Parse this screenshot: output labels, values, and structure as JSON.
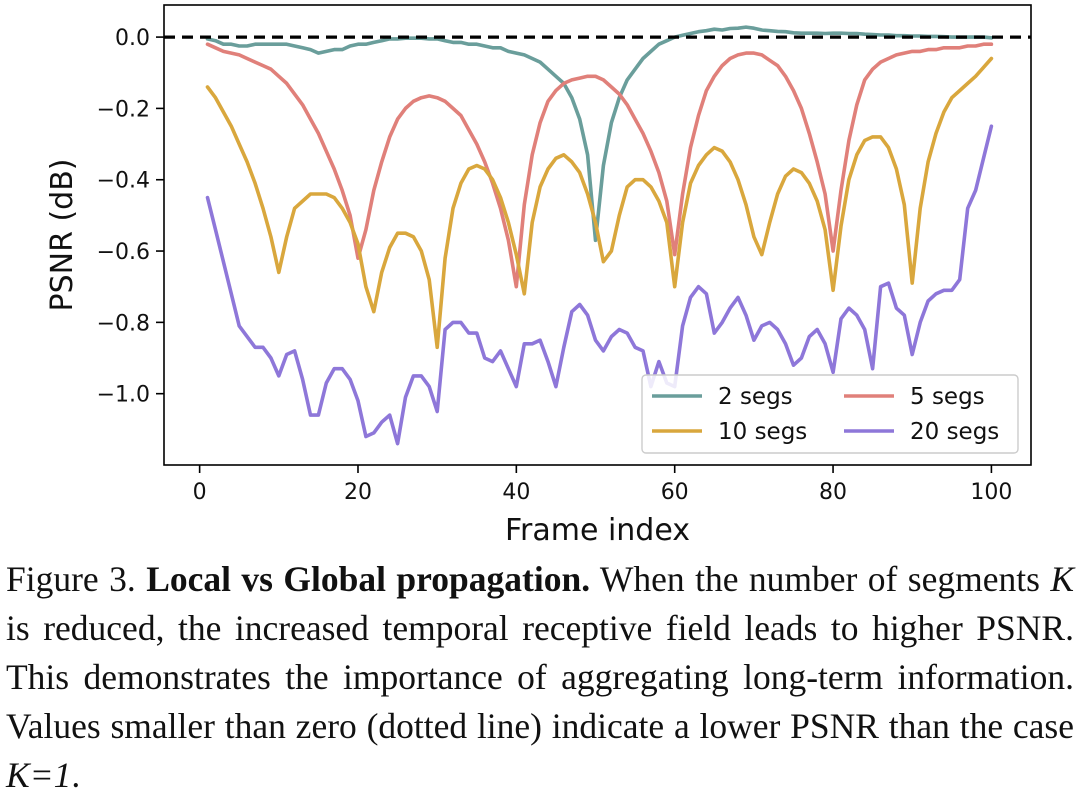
{
  "chart_data": {
    "type": "line",
    "xlabel": "Frame index",
    "ylabel": "PSNR (dB)",
    "xlim": [
      -4.5,
      105
    ],
    "ylim": [
      -1.2,
      0.09
    ],
    "xticks": [
      0,
      20,
      40,
      60,
      80,
      100
    ],
    "yticks": [
      0.0,
      -0.2,
      -0.4,
      -0.6,
      -0.8,
      -1.0
    ],
    "ytick_labels": [
      "0.0",
      "−0.2",
      "−0.4",
      "−0.6",
      "−0.8",
      "−1.0"
    ],
    "reference_line": {
      "y": 0.0,
      "style": "dashed",
      "color": "#000000"
    },
    "legend_position": "lower-right",
    "series": [
      {
        "name": "2 segs",
        "color": "#6a9e9b",
        "x": [
          1,
          2,
          3,
          4,
          5,
          6,
          7,
          8,
          9,
          10,
          11,
          12,
          13,
          14,
          15,
          16,
          17,
          18,
          19,
          20,
          21,
          22,
          23,
          24,
          25,
          26,
          27,
          28,
          29,
          30,
          31,
          32,
          33,
          34,
          35,
          36,
          37,
          38,
          39,
          40,
          41,
          42,
          43,
          44,
          45,
          46,
          47,
          48,
          49,
          50,
          51,
          52,
          53,
          54,
          55,
          56,
          57,
          58,
          59,
          60,
          61,
          62,
          63,
          64,
          65,
          66,
          67,
          68,
          69,
          70,
          71,
          72,
          73,
          74,
          75,
          76,
          77,
          78,
          79,
          80,
          81,
          82,
          83,
          84,
          85,
          86,
          87,
          88,
          89,
          90,
          91,
          92,
          93,
          94,
          95,
          96,
          97,
          98,
          99,
          100
        ],
        "values": [
          -0.005,
          -0.01,
          -0.02,
          -0.02,
          -0.025,
          -0.025,
          -0.02,
          -0.02,
          -0.02,
          -0.02,
          -0.02,
          -0.025,
          -0.03,
          -0.035,
          -0.045,
          -0.04,
          -0.035,
          -0.035,
          -0.025,
          -0.02,
          -0.02,
          -0.015,
          -0.01,
          -0.005,
          -0.005,
          -0.003,
          -0.003,
          -0.003,
          -0.005,
          -0.005,
          -0.01,
          -0.015,
          -0.015,
          -0.02,
          -0.02,
          -0.025,
          -0.03,
          -0.03,
          -0.04,
          -0.045,
          -0.05,
          -0.06,
          -0.07,
          -0.09,
          -0.11,
          -0.13,
          -0.17,
          -0.23,
          -0.33,
          -0.57,
          -0.36,
          -0.24,
          -0.17,
          -0.12,
          -0.09,
          -0.06,
          -0.04,
          -0.02,
          -0.01,
          0.0,
          0.005,
          0.01,
          0.015,
          0.018,
          0.022,
          0.02,
          0.024,
          0.025,
          0.028,
          0.025,
          0.02,
          0.018,
          0.016,
          0.015,
          0.012,
          0.011,
          0.011,
          0.011,
          0.01,
          0.011,
          0.011,
          0.01,
          0.01,
          0.008,
          0.007,
          0.006,
          0.006,
          0.004,
          0.004,
          0.003,
          0.003,
          0.002,
          0.002,
          0.001,
          0.0,
          0.0,
          0.0,
          0.0,
          0.0,
          -0.002
        ]
      },
      {
        "name": "5 segs",
        "color": "#e0807a",
        "x": [
          1,
          2,
          3,
          4,
          5,
          6,
          7,
          8,
          9,
          10,
          11,
          12,
          13,
          14,
          15,
          16,
          17,
          18,
          19,
          20,
          21,
          22,
          23,
          24,
          25,
          26,
          27,
          28,
          29,
          30,
          31,
          32,
          33,
          34,
          35,
          36,
          37,
          38,
          39,
          40,
          41,
          42,
          43,
          44,
          45,
          46,
          47,
          48,
          49,
          50,
          51,
          52,
          53,
          54,
          55,
          56,
          57,
          58,
          59,
          60,
          61,
          62,
          63,
          64,
          65,
          66,
          67,
          68,
          69,
          70,
          71,
          72,
          73,
          74,
          75,
          76,
          77,
          78,
          79,
          80,
          81,
          82,
          83,
          84,
          85,
          86,
          87,
          88,
          89,
          90,
          91,
          92,
          93,
          94,
          95,
          96,
          97,
          98,
          99,
          100
        ],
        "values": [
          -0.02,
          -0.03,
          -0.04,
          -0.045,
          -0.05,
          -0.06,
          -0.07,
          -0.08,
          -0.09,
          -0.11,
          -0.13,
          -0.16,
          -0.19,
          -0.23,
          -0.27,
          -0.32,
          -0.37,
          -0.43,
          -0.5,
          -0.62,
          -0.54,
          -0.43,
          -0.35,
          -0.28,
          -0.23,
          -0.2,
          -0.18,
          -0.17,
          -0.165,
          -0.17,
          -0.18,
          -0.2,
          -0.22,
          -0.26,
          -0.3,
          -0.35,
          -0.41,
          -0.48,
          -0.57,
          -0.7,
          -0.47,
          -0.33,
          -0.24,
          -0.18,
          -0.15,
          -0.13,
          -0.12,
          -0.115,
          -0.11,
          -0.11,
          -0.12,
          -0.14,
          -0.16,
          -0.19,
          -0.23,
          -0.27,
          -0.32,
          -0.38,
          -0.46,
          -0.61,
          -0.44,
          -0.31,
          -0.22,
          -0.15,
          -0.11,
          -0.08,
          -0.06,
          -0.05,
          -0.045,
          -0.045,
          -0.05,
          -0.065,
          -0.08,
          -0.11,
          -0.15,
          -0.2,
          -0.27,
          -0.35,
          -0.44,
          -0.6,
          -0.43,
          -0.29,
          -0.19,
          -0.12,
          -0.09,
          -0.07,
          -0.06,
          -0.05,
          -0.045,
          -0.04,
          -0.04,
          -0.035,
          -0.035,
          -0.03,
          -0.03,
          -0.03,
          -0.025,
          -0.025,
          -0.02,
          -0.02
        ]
      },
      {
        "name": "10 segs",
        "color": "#d9a73d",
        "x": [
          1,
          2,
          3,
          4,
          5,
          6,
          7,
          8,
          9,
          10,
          11,
          12,
          13,
          14,
          15,
          16,
          17,
          18,
          19,
          20,
          21,
          22,
          23,
          24,
          25,
          26,
          27,
          28,
          29,
          30,
          31,
          32,
          33,
          34,
          35,
          36,
          37,
          38,
          39,
          40,
          41,
          42,
          43,
          44,
          45,
          46,
          47,
          48,
          49,
          50,
          51,
          52,
          53,
          54,
          55,
          56,
          57,
          58,
          59,
          60,
          61,
          62,
          63,
          64,
          65,
          66,
          67,
          68,
          69,
          70,
          71,
          72,
          73,
          74,
          75,
          76,
          77,
          78,
          79,
          80,
          81,
          82,
          83,
          84,
          85,
          86,
          87,
          88,
          89,
          90,
          91,
          92,
          93,
          94,
          95,
          96,
          97,
          98,
          99,
          100
        ],
        "values": [
          -0.14,
          -0.17,
          -0.21,
          -0.25,
          -0.3,
          -0.35,
          -0.41,
          -0.48,
          -0.56,
          -0.66,
          -0.56,
          -0.48,
          -0.46,
          -0.44,
          -0.44,
          -0.44,
          -0.45,
          -0.48,
          -0.52,
          -0.58,
          -0.7,
          -0.77,
          -0.66,
          -0.59,
          -0.55,
          -0.55,
          -0.56,
          -0.6,
          -0.68,
          -0.87,
          -0.62,
          -0.48,
          -0.41,
          -0.37,
          -0.36,
          -0.37,
          -0.4,
          -0.45,
          -0.52,
          -0.61,
          -0.72,
          -0.52,
          -0.42,
          -0.37,
          -0.34,
          -0.33,
          -0.35,
          -0.38,
          -0.44,
          -0.52,
          -0.63,
          -0.6,
          -0.5,
          -0.42,
          -0.4,
          -0.4,
          -0.42,
          -0.46,
          -0.52,
          -0.7,
          -0.52,
          -0.41,
          -0.36,
          -0.33,
          -0.31,
          -0.32,
          -0.35,
          -0.4,
          -0.47,
          -0.56,
          -0.61,
          -0.52,
          -0.44,
          -0.39,
          -0.37,
          -0.38,
          -0.41,
          -0.46,
          -0.54,
          -0.71,
          -0.53,
          -0.4,
          -0.33,
          -0.29,
          -0.28,
          -0.28,
          -0.31,
          -0.37,
          -0.47,
          -0.69,
          -0.48,
          -0.35,
          -0.27,
          -0.21,
          -0.17,
          -0.15,
          -0.13,
          -0.11,
          -0.085,
          -0.06
        ]
      },
      {
        "name": "20 segs",
        "color": "#8e77d9",
        "x": [
          1,
          2,
          3,
          4,
          5,
          6,
          7,
          8,
          9,
          10,
          11,
          12,
          13,
          14,
          15,
          16,
          17,
          18,
          19,
          20,
          21,
          22,
          23,
          24,
          25,
          26,
          27,
          28,
          29,
          30,
          31,
          32,
          33,
          34,
          35,
          36,
          37,
          38,
          39,
          40,
          41,
          42,
          43,
          44,
          45,
          46,
          47,
          48,
          49,
          50,
          51,
          52,
          53,
          54,
          55,
          56,
          57,
          58,
          59,
          60,
          61,
          62,
          63,
          64,
          65,
          66,
          67,
          68,
          69,
          70,
          71,
          72,
          73,
          74,
          75,
          76,
          77,
          78,
          79,
          80,
          81,
          82,
          83,
          84,
          85,
          86,
          87,
          88,
          89,
          90,
          91,
          92,
          93,
          94,
          95,
          96,
          97,
          98,
          99,
          100
        ],
        "values": [
          -0.45,
          -0.54,
          -0.63,
          -0.72,
          -0.81,
          -0.84,
          -0.87,
          -0.87,
          -0.9,
          -0.95,
          -0.89,
          -0.88,
          -0.96,
          -1.06,
          -1.06,
          -0.97,
          -0.93,
          -0.93,
          -0.96,
          -1.02,
          -1.12,
          -1.11,
          -1.08,
          -1.06,
          -1.14,
          -1.01,
          -0.95,
          -0.95,
          -0.98,
          -1.05,
          -0.82,
          -0.8,
          -0.8,
          -0.83,
          -0.83,
          -0.9,
          -0.91,
          -0.88,
          -0.93,
          -0.98,
          -0.86,
          -0.86,
          -0.85,
          -0.91,
          -0.98,
          -0.87,
          -0.77,
          -0.75,
          -0.78,
          -0.85,
          -0.88,
          -0.84,
          -0.82,
          -0.83,
          -0.87,
          -0.88,
          -0.98,
          -0.91,
          -0.97,
          -0.98,
          -0.81,
          -0.73,
          -0.7,
          -0.72,
          -0.83,
          -0.8,
          -0.76,
          -0.73,
          -0.78,
          -0.85,
          -0.81,
          -0.8,
          -0.82,
          -0.86,
          -0.92,
          -0.9,
          -0.84,
          -0.82,
          -0.86,
          -0.94,
          -0.79,
          -0.76,
          -0.78,
          -0.82,
          -0.93,
          -0.7,
          -0.69,
          -0.76,
          -0.78,
          -0.89,
          -0.8,
          -0.74,
          -0.72,
          -0.71,
          -0.71,
          -0.68,
          -0.48,
          -0.43,
          -0.34,
          -0.25
        ]
      }
    ]
  },
  "caption": {
    "label": "Figure 3.",
    "title": "Local vs Global propagation.",
    "text_1": "When the number of segments",
    "var_k": "K",
    "text_2": "is reduced, the increased temporal receptive field leads to higher PSNR. This demonstrates the importance of aggregating long-term information. Values smaller than zero (dotted line) indicate a lower PSNR than the case",
    "case_eq": "K=1",
    "end": "."
  }
}
